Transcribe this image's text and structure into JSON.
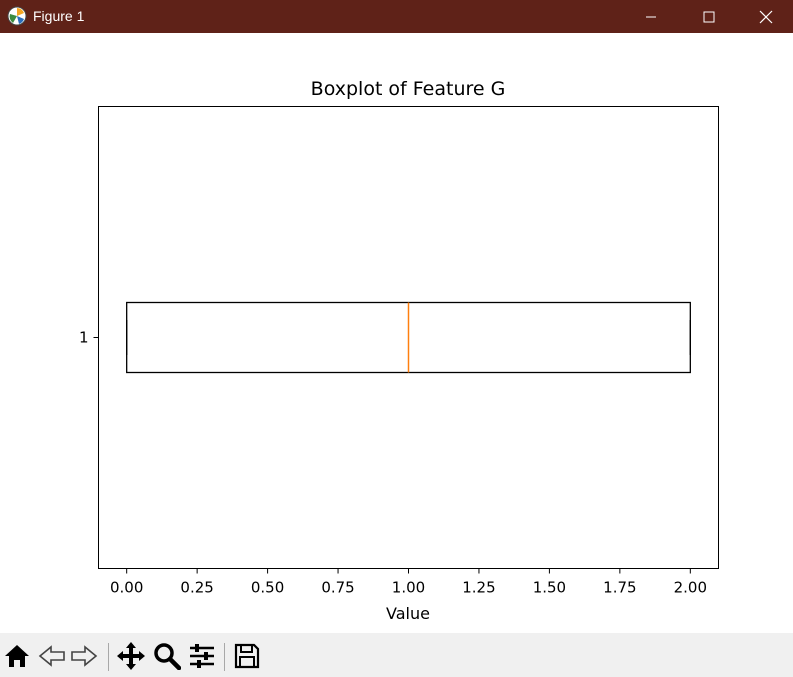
{
  "window": {
    "title": "Figure 1",
    "titlebar_color": "#5f2218"
  },
  "toolbar": {
    "items": [
      "home-icon",
      "back-arrow-icon",
      "forward-arrow-icon",
      "pan-icon",
      "zoom-icon",
      "configure-subplots-icon",
      "save-icon"
    ],
    "coord_readout": ""
  },
  "chart_data": {
    "type": "boxplot",
    "orientation": "horizontal",
    "title": "Boxplot of Feature G",
    "xlabel": "Value",
    "ylabel": "",
    "xlim": [
      -0.1,
      2.1
    ],
    "xticks": [
      0.0,
      0.25,
      0.5,
      0.75,
      1.0,
      1.25,
      1.5,
      1.75,
      2.0
    ],
    "xtick_labels": [
      "0.00",
      "0.25",
      "0.50",
      "0.75",
      "1.00",
      "1.25",
      "1.50",
      "1.75",
      "2.00"
    ],
    "yticks": [
      1
    ],
    "ytick_labels": [
      "1"
    ],
    "ylim": [
      0.5,
      1.5
    ],
    "boxes": [
      {
        "position": 1,
        "whisker_low": 0.0,
        "q1": 0.0,
        "median": 1.0,
        "q3": 2.0,
        "whisker_high": 2.0
      }
    ],
    "colors": {
      "box": "#000000",
      "median": "#ff7f0e",
      "frame": "#000000"
    },
    "grid": false
  }
}
